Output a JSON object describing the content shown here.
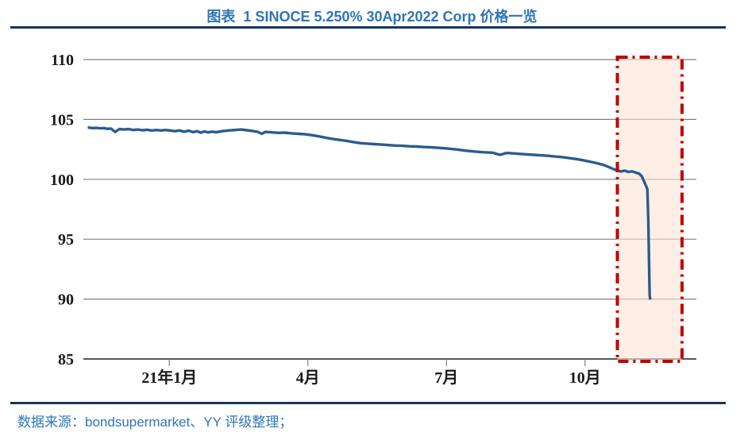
{
  "page": {
    "title": "图表  1 SINOCE 5.250% 30Apr2022 Corp 价格一览",
    "source_note": "数据来源：bondsupermarket、YY 评级整理；"
  },
  "colors": {
    "title_blue": "#2E75B6",
    "rule_navy": "#17365D",
    "line_blue": "#2B5C8E",
    "grid_gray": "#808080",
    "axis_gray": "#595959",
    "tick_text": "#1a1a1a",
    "highlight_fill": "#FBE5D6",
    "highlight_stroke": "#C00000"
  },
  "chart_data": {
    "type": "line",
    "title": "SINOCE 5.250% 30Apr2022 Corp 价格一览",
    "xlabel": "",
    "ylabel": "",
    "x_unit": "months relative to 2021-01 (0 = 21年1月)",
    "x_range": [
      -1.86,
      11.41
    ],
    "ylim": [
      85,
      110
    ],
    "y_ticks": [
      85,
      90,
      95,
      100,
      105,
      110
    ],
    "x_ticks": [
      {
        "m": 0,
        "label": "21年1月"
      },
      {
        "m": 3,
        "label": "4月"
      },
      {
        "m": 6,
        "label": "7月"
      },
      {
        "m": 9,
        "label": "10月"
      }
    ],
    "grid": "horizontal",
    "legend_position": "none",
    "highlight_region": {
      "x0_m": 9.7,
      "x1_m": 11.1,
      "note": "red dash-dot box marking the late-Oct/Nov 2021 price collapse"
    },
    "series": [
      {
        "name": "SINOCE 5.250% 30Apr2022 Corp price",
        "points": [
          [
            -1.74,
            104.32
          ],
          [
            -1.66,
            104.28
          ],
          [
            -1.58,
            104.3
          ],
          [
            -1.5,
            104.26
          ],
          [
            -1.42,
            104.28
          ],
          [
            -1.34,
            104.22
          ],
          [
            -1.26,
            104.24
          ],
          [
            -1.17,
            103.96
          ],
          [
            -1.08,
            104.2
          ],
          [
            -0.98,
            104.16
          ],
          [
            -0.88,
            104.2
          ],
          [
            -0.78,
            104.12
          ],
          [
            -0.68,
            104.16
          ],
          [
            -0.58,
            104.1
          ],
          [
            -0.48,
            104.14
          ],
          [
            -0.38,
            104.08
          ],
          [
            -0.28,
            104.12
          ],
          [
            -0.18,
            104.08
          ],
          [
            -0.08,
            104.12
          ],
          [
            0.02,
            104.08
          ],
          [
            0.12,
            104.02
          ],
          [
            0.22,
            104.08
          ],
          [
            0.32,
            103.98
          ],
          [
            0.42,
            104.06
          ],
          [
            0.52,
            103.94
          ],
          [
            0.6,
            104.02
          ],
          [
            0.68,
            103.9
          ],
          [
            0.76,
            104.0
          ],
          [
            0.84,
            103.92
          ],
          [
            0.92,
            103.98
          ],
          [
            1.02,
            103.94
          ],
          [
            1.14,
            104.02
          ],
          [
            1.28,
            104.08
          ],
          [
            1.42,
            104.12
          ],
          [
            1.55,
            104.16
          ],
          [
            1.68,
            104.1
          ],
          [
            1.8,
            104.04
          ],
          [
            1.92,
            103.96
          ],
          [
            2.0,
            103.8
          ],
          [
            2.08,
            103.96
          ],
          [
            2.22,
            103.92
          ],
          [
            2.36,
            103.88
          ],
          [
            2.5,
            103.9
          ],
          [
            2.65,
            103.84
          ],
          [
            2.8,
            103.8
          ],
          [
            2.95,
            103.76
          ],
          [
            3.1,
            103.68
          ],
          [
            3.25,
            103.58
          ],
          [
            3.4,
            103.46
          ],
          [
            3.55,
            103.36
          ],
          [
            3.7,
            103.28
          ],
          [
            3.85,
            103.2
          ],
          [
            4.0,
            103.1
          ],
          [
            4.15,
            103.02
          ],
          [
            4.3,
            102.98
          ],
          [
            4.45,
            102.94
          ],
          [
            4.6,
            102.9
          ],
          [
            4.75,
            102.86
          ],
          [
            4.9,
            102.82
          ],
          [
            5.05,
            102.8
          ],
          [
            5.2,
            102.76
          ],
          [
            5.35,
            102.74
          ],
          [
            5.5,
            102.7
          ],
          [
            5.65,
            102.68
          ],
          [
            5.8,
            102.64
          ],
          [
            6.0,
            102.58
          ],
          [
            6.2,
            102.5
          ],
          [
            6.4,
            102.4
          ],
          [
            6.6,
            102.32
          ],
          [
            6.8,
            102.26
          ],
          [
            7.0,
            102.22
          ],
          [
            7.16,
            102.04
          ],
          [
            7.3,
            102.2
          ],
          [
            7.45,
            102.16
          ],
          [
            7.6,
            102.12
          ],
          [
            7.75,
            102.08
          ],
          [
            7.9,
            102.04
          ],
          [
            8.05,
            102.0
          ],
          [
            8.2,
            101.96
          ],
          [
            8.35,
            101.9
          ],
          [
            8.5,
            101.86
          ],
          [
            8.65,
            101.78
          ],
          [
            8.8,
            101.7
          ],
          [
            8.95,
            101.6
          ],
          [
            9.1,
            101.48
          ],
          [
            9.25,
            101.35
          ],
          [
            9.4,
            101.2
          ],
          [
            9.5,
            101.05
          ],
          [
            9.6,
            100.88
          ],
          [
            9.7,
            100.72
          ],
          [
            9.78,
            100.66
          ],
          [
            9.86,
            100.72
          ],
          [
            9.94,
            100.62
          ],
          [
            10.02,
            100.66
          ],
          [
            10.1,
            100.56
          ],
          [
            10.17,
            100.48
          ],
          [
            10.23,
            100.24
          ],
          [
            10.28,
            99.8
          ],
          [
            10.32,
            99.45
          ],
          [
            10.35,
            99.2
          ],
          [
            10.37,
            96.5
          ],
          [
            10.39,
            92.0
          ],
          [
            10.4,
            90.3
          ],
          [
            10.41,
            90.05
          ]
        ]
      }
    ]
  }
}
